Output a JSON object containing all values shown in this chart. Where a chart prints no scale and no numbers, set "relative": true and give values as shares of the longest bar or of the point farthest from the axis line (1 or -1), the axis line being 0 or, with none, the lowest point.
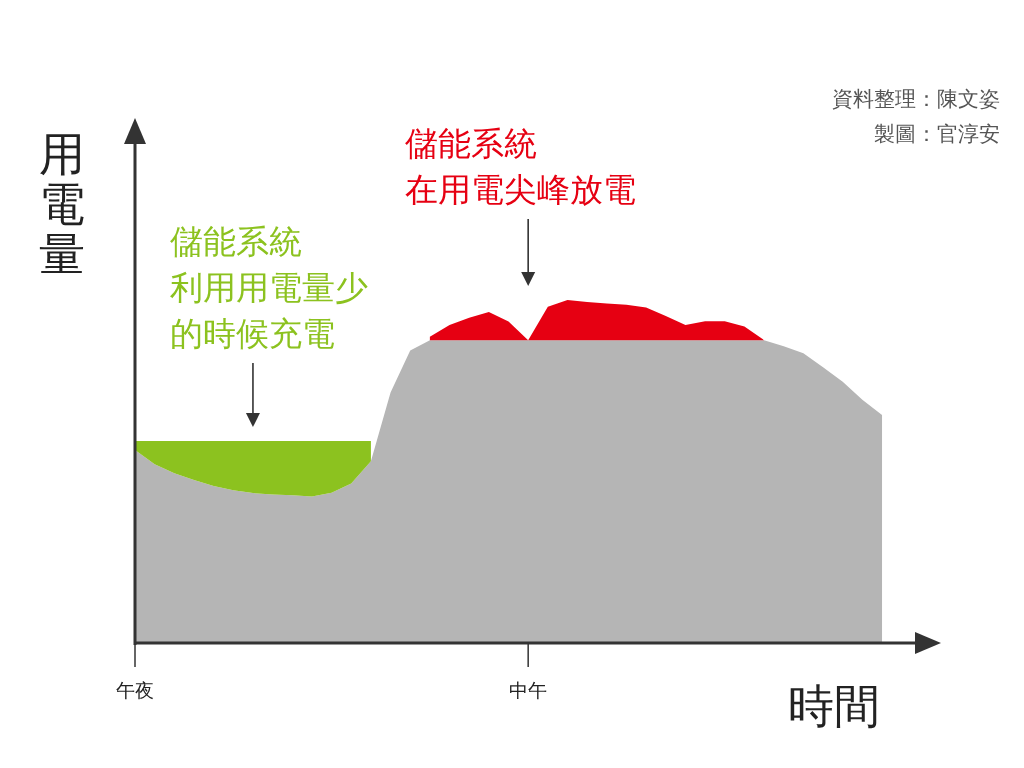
{
  "chart_data": {
    "type": "area",
    "relative": true,
    "stacked": true,
    "categories": [
      "午夜",
      null,
      null,
      null,
      null,
      null,
      null,
      null,
      null,
      null,
      null,
      null,
      null,
      null,
      null,
      null,
      null,
      null,
      null,
      null,
      "中午",
      null,
      null,
      null,
      null,
      null,
      null,
      null,
      null,
      null,
      null,
      null,
      null,
      null,
      null,
      null,
      null,
      null,
      null
    ],
    "xlabel": "時間",
    "ylabel": "用電量",
    "series": [
      {
        "color": "#b5b5b5",
        "values": [
          0.563,
          0.521,
          0.495,
          0.475,
          0.458,
          0.445,
          0.437,
          0.433,
          0.431,
          0.427,
          0.438,
          0.465,
          0.53,
          0.73,
          0.853,
          0.883,
          0.883,
          0.883,
          0.883,
          0.883,
          0.883,
          0.883,
          0.883,
          0.883,
          0.883,
          0.883,
          0.883,
          0.883,
          0.883,
          0.883,
          0.883,
          0.883,
          0.883,
          0.865,
          0.845,
          0.804,
          0.762,
          0.709,
          0.665
        ]
      },
      {
        "name": "儲能系統利用用電量少的時候充電",
        "color": "#8cc21f",
        "values": [
          0.026,
          0.068,
          0.094,
          0.114,
          0.131,
          0.144,
          0.152,
          0.156,
          0.158,
          0.162,
          0.151,
          0.124,
          0.059,
          null,
          null,
          null,
          null,
          null,
          null,
          null,
          null,
          null,
          null,
          null,
          null,
          null,
          null,
          null,
          null,
          null,
          null,
          null,
          null,
          null,
          null,
          null,
          null,
          null,
          null
        ]
      },
      {
        "name": "儲能系統在用電尖峰放電",
        "color": "#e60012",
        "values": [
          null,
          null,
          null,
          null,
          null,
          null,
          null,
          null,
          null,
          null,
          null,
          null,
          null,
          null,
          null,
          0.01,
          0.044,
          0.065,
          0.082,
          0.054,
          0,
          0.097,
          0.117,
          0.111,
          0.107,
          0.103,
          0.095,
          0.07,
          0.044,
          0.055,
          0.055,
          0.04,
          0,
          null,
          null,
          null,
          null,
          null,
          null
        ]
      }
    ],
    "annotations": [
      "資料整理：陳文姿",
      "製圖：官淳安"
    ]
  }
}
